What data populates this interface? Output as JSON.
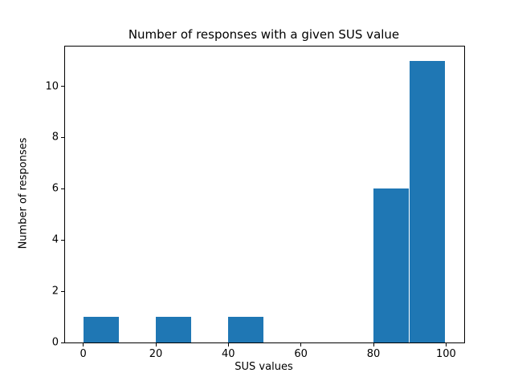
{
  "chart_data": {
    "type": "bar",
    "subtype": "histogram",
    "title": "Number of responses with a given SUS value",
    "xlabel": "SUS values",
    "ylabel": "Number of responses",
    "bin_edges": [
      0,
      10,
      20,
      30,
      40,
      50,
      60,
      70,
      80,
      90,
      100
    ],
    "counts": [
      1,
      0,
      1,
      0,
      1,
      0,
      0,
      0,
      6,
      11
    ],
    "xticks": [
      0,
      20,
      40,
      60,
      80,
      100
    ],
    "yticks": [
      0,
      2,
      4,
      6,
      8,
      10
    ],
    "xlim": [
      -5,
      105
    ],
    "ylim": [
      0,
      11.55
    ],
    "grid": false,
    "legend": null,
    "colors": {
      "bar": "#1f77b4",
      "background": "#ffffff",
      "text": "#000000",
      "spine": "#000000"
    }
  }
}
